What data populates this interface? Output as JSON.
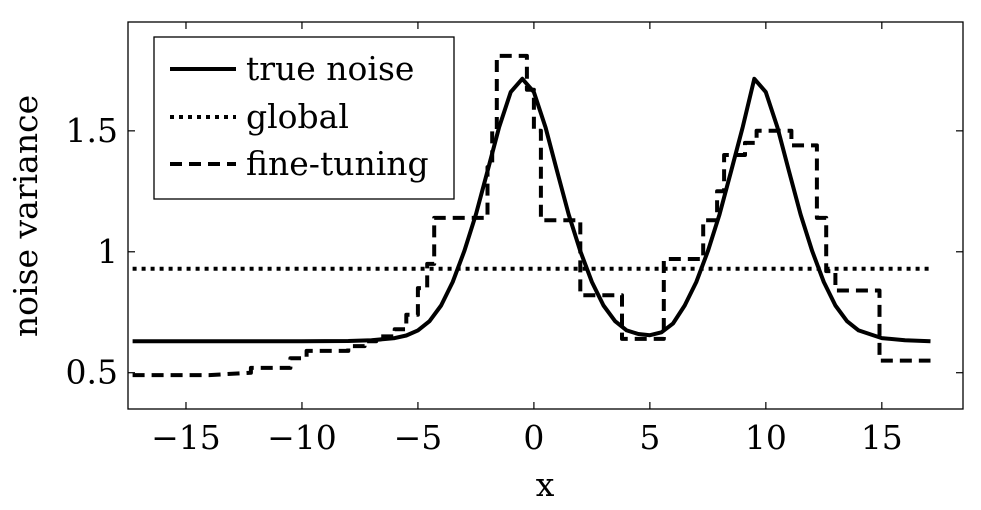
{
  "chart_data": {
    "type": "line",
    "title": "",
    "xlabel": "x",
    "ylabel": "noise variance",
    "xlim": [
      -17.5,
      18.5
    ],
    "ylim": [
      0.35,
      1.95
    ],
    "xticks": [
      -15,
      -10,
      -5,
      0,
      5,
      10,
      15
    ],
    "xtick_labels": [
      "−15",
      "−10",
      "−5",
      "0",
      "5",
      "10",
      "15"
    ],
    "yticks": [
      0.5,
      1,
      1.5
    ],
    "ytick_labels": [
      "0.5",
      "1",
      "1.5"
    ],
    "grid": false,
    "legend_position": "top-left",
    "series": [
      {
        "name": "true noise",
        "style": "solid",
        "color": "#000000",
        "x": [
          -17.3,
          -14,
          -10,
          -8,
          -7,
          -6,
          -5.5,
          -5,
          -4.5,
          -4,
          -3.5,
          -3,
          -2.5,
          -2,
          -1.5,
          -1,
          -0.5,
          0,
          0.5,
          1,
          1.5,
          2,
          2.5,
          3,
          3.5,
          4,
          4.5,
          5,
          5.5,
          6,
          6.5,
          7,
          7.5,
          8,
          8.5,
          9,
          9.5,
          10,
          10.5,
          11,
          11.5,
          12,
          12.5,
          13,
          13.5,
          14,
          15,
          16,
          17.1
        ],
        "y": [
          0.63,
          0.63,
          0.63,
          0.631,
          0.634,
          0.643,
          0.654,
          0.675,
          0.713,
          0.778,
          0.875,
          1.003,
          1.154,
          1.333,
          1.515,
          1.66,
          1.715,
          1.66,
          1.515,
          1.333,
          1.154,
          1.003,
          0.875,
          0.778,
          0.713,
          0.675,
          0.66,
          0.655,
          0.667,
          0.704,
          0.778,
          0.875,
          1.003,
          1.154,
          1.333,
          1.515,
          1.715,
          1.66,
          1.515,
          1.333,
          1.154,
          1.003,
          0.875,
          0.778,
          0.713,
          0.675,
          0.643,
          0.634,
          0.63
        ]
      },
      {
        "name": "global",
        "style": "dotted",
        "color": "#000000",
        "x": [
          -17.3,
          17.1
        ],
        "y": [
          0.93,
          0.93
        ]
      },
      {
        "name": "fine-tuning",
        "style": "dashed",
        "color": "#000000",
        "x": [
          -17.3,
          -14,
          -12.2,
          -12.2,
          -10.5,
          -10.5,
          -9.8,
          -9.8,
          -8,
          -8,
          -7.3,
          -7.3,
          -6.8,
          -6.8,
          -6,
          -6,
          -5.5,
          -5.5,
          -5,
          -5,
          -4.6,
          -4.6,
          -4.3,
          -4.3,
          -3.8,
          -3.8,
          -2,
          -2,
          -1.8,
          -1.8,
          -1.6,
          -1.6,
          -0.3,
          -0.3,
          0,
          0,
          0.3,
          0.3,
          2,
          2,
          3.8,
          3.8,
          5.6,
          5.6,
          7.3,
          7.3,
          7.9,
          7.9,
          8.2,
          8.2,
          8.6,
          8.6,
          9.1,
          9.1,
          9.6,
          9.6,
          10.6,
          10.6,
          11.1,
          11.1,
          12.2,
          12.2,
          12.6,
          12.6,
          13,
          13,
          14.9,
          14.9,
          17.1
        ],
        "y": [
          0.49,
          0.49,
          0.5,
          0.52,
          0.52,
          0.56,
          0.56,
          0.59,
          0.59,
          0.61,
          0.61,
          0.63,
          0.63,
          0.65,
          0.65,
          0.68,
          0.68,
          0.74,
          0.74,
          0.85,
          0.85,
          0.95,
          0.95,
          1.14,
          1.14,
          1.14,
          1.14,
          1.35,
          1.35,
          1.5,
          1.5,
          1.81,
          1.81,
          1.67,
          1.67,
          1.5,
          1.5,
          1.13,
          1.13,
          0.82,
          0.82,
          0.64,
          0.64,
          0.97,
          0.97,
          1.13,
          1.13,
          1.25,
          1.25,
          1.4,
          1.4,
          1.4,
          1.4,
          1.45,
          1.45,
          1.5,
          1.5,
          1.5,
          1.5,
          1.44,
          1.44,
          1.14,
          1.14,
          0.92,
          0.92,
          0.84,
          0.84,
          0.55,
          0.55
        ]
      }
    ]
  }
}
